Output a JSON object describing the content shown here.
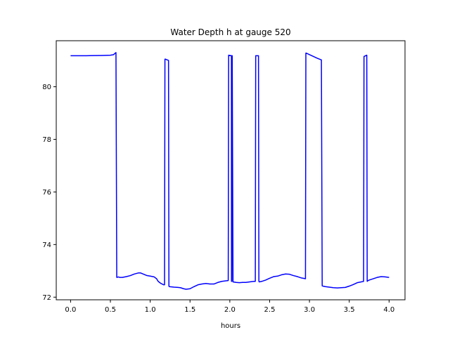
{
  "chart_data": {
    "type": "line",
    "title": "Water Depth h at gauge 520",
    "xlabel": "hours",
    "ylabel": "",
    "xlim": [
      -0.18,
      4.2
    ],
    "ylim": [
      71.9,
      81.75
    ],
    "xticks": [
      0.0,
      0.5,
      1.0,
      1.5,
      2.0,
      2.5,
      3.0,
      3.5,
      4.0
    ],
    "xtick_labels": [
      "0.0",
      "0.5",
      "1.0",
      "1.5",
      "2.0",
      "2.5",
      "3.0",
      "3.5",
      "4.0"
    ],
    "yticks": [
      72,
      74,
      76,
      78,
      80
    ],
    "ytick_labels": [
      "72",
      "74",
      "76",
      "78",
      "80"
    ],
    "grid": false,
    "series": [
      {
        "color": "#0000ff",
        "x": [
          0.0,
          0.2,
          0.4,
          0.5,
          0.54,
          0.57,
          0.58,
          0.6,
          0.62,
          0.65,
          0.7,
          0.75,
          0.8,
          0.85,
          0.88,
          0.92,
          0.96,
          1.0,
          1.05,
          1.08,
          1.1,
          1.13,
          1.15,
          1.17,
          1.18,
          1.185,
          1.19,
          1.23,
          1.235,
          1.24,
          1.3,
          1.35,
          1.38,
          1.42,
          1.45,
          1.5,
          1.55,
          1.6,
          1.65,
          1.7,
          1.75,
          1.8,
          1.85,
          1.9,
          1.95,
          1.98,
          1.985,
          2.02,
          2.021,
          2.025,
          2.026,
          2.03,
          2.04,
          2.08,
          2.12,
          2.16,
          2.2,
          2.25,
          2.3,
          2.32,
          2.325,
          2.36,
          2.365,
          2.37,
          2.4,
          2.45,
          2.5,
          2.55,
          2.6,
          2.65,
          2.7,
          2.75,
          2.8,
          2.85,
          2.9,
          2.95,
          2.955,
          2.96,
          3.0,
          3.05,
          3.1,
          3.15,
          3.16,
          3.17,
          3.2,
          3.25,
          3.3,
          3.35,
          3.4,
          3.45,
          3.5,
          3.55,
          3.6,
          3.65,
          3.68,
          3.685,
          3.72,
          3.725,
          3.73,
          3.75,
          3.8,
          3.85,
          3.9,
          3.95,
          4.0
        ],
        "y": [
          81.18,
          81.18,
          81.19,
          81.2,
          81.22,
          81.3,
          72.75,
          72.77,
          72.75,
          72.75,
          72.78,
          72.82,
          72.88,
          72.92,
          72.92,
          72.87,
          72.82,
          72.8,
          72.77,
          72.7,
          72.6,
          72.53,
          72.5,
          72.47,
          72.47,
          81.05,
          81.05,
          81.0,
          72.42,
          72.4,
          72.38,
          72.37,
          72.36,
          72.32,
          72.3,
          72.32,
          72.4,
          72.47,
          72.5,
          72.52,
          72.5,
          72.5,
          72.56,
          72.6,
          72.62,
          72.63,
          81.2,
          81.18,
          72.6,
          72.6,
          81.18,
          81.18,
          72.58,
          72.56,
          72.55,
          72.56,
          72.56,
          72.58,
          72.6,
          72.6,
          81.18,
          81.18,
          72.6,
          72.58,
          72.6,
          72.65,
          72.72,
          72.78,
          72.8,
          72.85,
          72.88,
          72.87,
          72.82,
          72.78,
          72.73,
          72.7,
          81.28,
          81.28,
          81.22,
          81.15,
          81.08,
          81.02,
          72.43,
          72.42,
          72.4,
          72.38,
          72.36,
          72.35,
          72.36,
          72.37,
          72.42,
          72.48,
          72.55,
          72.58,
          72.6,
          81.15,
          81.2,
          72.6,
          72.62,
          72.65,
          72.7,
          72.75,
          72.78,
          72.77,
          72.75
        ]
      }
    ]
  }
}
